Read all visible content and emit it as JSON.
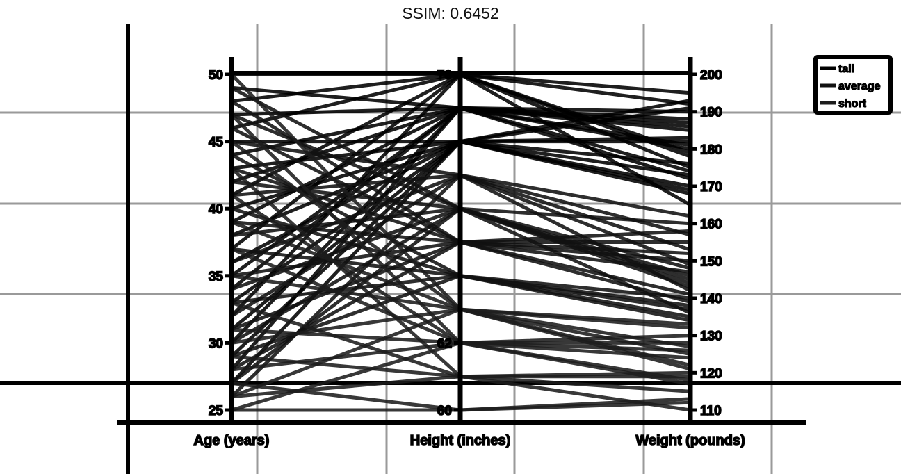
{
  "title_label": "SSIM: 0.6452",
  "chart_data": {
    "type": "parallel_coordinates",
    "axes": [
      {
        "name": "Age (years)",
        "range": [
          25,
          50
        ],
        "ticks": [
          25,
          30,
          35,
          40,
          45,
          50
        ]
      },
      {
        "name": "Height (inches)",
        "range": [
          60,
          70
        ],
        "ticks": [
          60,
          62,
          70
        ]
      },
      {
        "name": "Weight (pounds)",
        "range": [
          110,
          200
        ],
        "ticks": [
          110,
          120,
          130,
          140,
          150,
          160,
          170,
          180,
          190,
          200
        ]
      }
    ],
    "legend": {
      "placement": "top-right",
      "entries": [
        "tall",
        "average",
        "short"
      ]
    },
    "grid": true,
    "colors": {
      "tall": "#000000",
      "average": "#111111",
      "short": "#1c1c1c"
    },
    "records": [
      {
        "group": "tall",
        "values": [
          50,
          70,
          192
        ]
      },
      {
        "group": "tall",
        "values": [
          49,
          69,
          190
        ]
      },
      {
        "group": "tall",
        "values": [
          48,
          70,
          195
        ]
      },
      {
        "group": "tall",
        "values": [
          47,
          69,
          185
        ]
      },
      {
        "group": "tall",
        "values": [
          46,
          70,
          175
        ]
      },
      {
        "group": "tall",
        "values": [
          45,
          68,
          193
        ]
      },
      {
        "group": "tall",
        "values": [
          44,
          69,
          180
        ]
      },
      {
        "group": "tall",
        "values": [
          43,
          68,
          170
        ]
      },
      {
        "group": "tall",
        "values": [
          42,
          69,
          188
        ]
      },
      {
        "group": "tall",
        "values": [
          41,
          70,
          165
        ]
      },
      {
        "group": "tall",
        "values": [
          40,
          68,
          182
        ]
      },
      {
        "group": "tall",
        "values": [
          39,
          69,
          172
        ]
      },
      {
        "group": "tall",
        "values": [
          38,
          68,
          191
        ]
      },
      {
        "group": "tall",
        "values": [
          37,
          70,
          178
        ]
      },
      {
        "group": "tall",
        "values": [
          36,
          68,
          168
        ]
      },
      {
        "group": "tall",
        "values": [
          35,
          69,
          186
        ]
      },
      {
        "group": "tall",
        "values": [
          34,
          69,
          174
        ]
      },
      {
        "group": "tall",
        "values": [
          33,
          68,
          183
        ]
      },
      {
        "group": "tall",
        "values": [
          32,
          70,
          179
        ]
      },
      {
        "group": "tall",
        "values": [
          31,
          68,
          176
        ]
      },
      {
        "group": "tall",
        "values": [
          30,
          69,
          187
        ]
      },
      {
        "group": "tall",
        "values": [
          29,
          68,
          173
        ]
      },
      {
        "group": "tall",
        "values": [
          28,
          69,
          181
        ]
      },
      {
        "group": "tall",
        "values": [
          27,
          68,
          169
        ]
      },
      {
        "group": "average",
        "values": [
          49,
          66,
          160
        ]
      },
      {
        "group": "average",
        "values": [
          48,
          65,
          152
        ]
      },
      {
        "group": "average",
        "values": [
          47,
          66,
          145
        ]
      },
      {
        "group": "average",
        "values": [
          46,
          65,
          158
        ]
      },
      {
        "group": "average",
        "values": [
          45,
          67,
          149
        ]
      },
      {
        "group": "average",
        "values": [
          44,
          64,
          140
        ]
      },
      {
        "group": "average",
        "values": [
          43,
          65,
          155
        ]
      },
      {
        "group": "average",
        "values": [
          42,
          66,
          146
        ]
      },
      {
        "group": "average",
        "values": [
          41,
          67,
          162
        ]
      },
      {
        "group": "average",
        "values": [
          40,
          64,
          138
        ]
      },
      {
        "group": "average",
        "values": [
          39,
          65,
          150
        ]
      },
      {
        "group": "average",
        "values": [
          38,
          66,
          143
        ]
      },
      {
        "group": "average",
        "values": [
          37,
          64,
          135
        ]
      },
      {
        "group": "average",
        "values": [
          36,
          67,
          157
        ]
      },
      {
        "group": "average",
        "values": [
          35,
          65,
          141
        ]
      },
      {
        "group": "average",
        "values": [
          34,
          66,
          148
        ]
      },
      {
        "group": "average",
        "values": [
          33,
          64,
          137
        ]
      },
      {
        "group": "average",
        "values": [
          32,
          67,
          153
        ]
      },
      {
        "group": "average",
        "values": [
          31,
          65,
          139
        ]
      },
      {
        "group": "average",
        "values": [
          30,
          66,
          144
        ]
      },
      {
        "group": "average",
        "values": [
          29,
          64,
          134
        ]
      },
      {
        "group": "average",
        "values": [
          28,
          65,
          147
        ]
      },
      {
        "group": "average",
        "values": [
          27,
          66,
          136
        ]
      },
      {
        "group": "average",
        "values": [
          26,
          67,
          142
        ]
      },
      {
        "group": "short",
        "values": [
          50,
          63,
          132
        ]
      },
      {
        "group": "short",
        "values": [
          47,
          62,
          128
        ]
      },
      {
        "group": "short",
        "values": [
          45,
          63,
          125
        ]
      },
      {
        "group": "short",
        "values": [
          43,
          61,
          120
        ]
      },
      {
        "group": "short",
        "values": [
          41,
          62,
          130
        ]
      },
      {
        "group": "short",
        "values": [
          39,
          63,
          122
        ]
      },
      {
        "group": "short",
        "values": [
          37,
          62,
          118
        ]
      },
      {
        "group": "short",
        "values": [
          35,
          63,
          127
        ]
      },
      {
        "group": "short",
        "values": [
          33,
          61,
          115
        ]
      },
      {
        "group": "short",
        "values": [
          31,
          62,
          124
        ]
      },
      {
        "group": "short",
        "values": [
          30,
          63,
          133
        ]
      },
      {
        "group": "short",
        "values": [
          29,
          61,
          119
        ]
      },
      {
        "group": "short",
        "values": [
          28,
          62,
          126
        ]
      },
      {
        "group": "short",
        "values": [
          27,
          60,
          112
        ]
      },
      {
        "group": "short",
        "values": [
          26,
          63,
          121
        ]
      },
      {
        "group": "short",
        "values": [
          25,
          60,
          113
        ]
      },
      {
        "group": "short",
        "values": [
          25,
          62,
          117
        ]
      },
      {
        "group": "short",
        "values": [
          26,
          61,
          110
        ]
      }
    ]
  }
}
